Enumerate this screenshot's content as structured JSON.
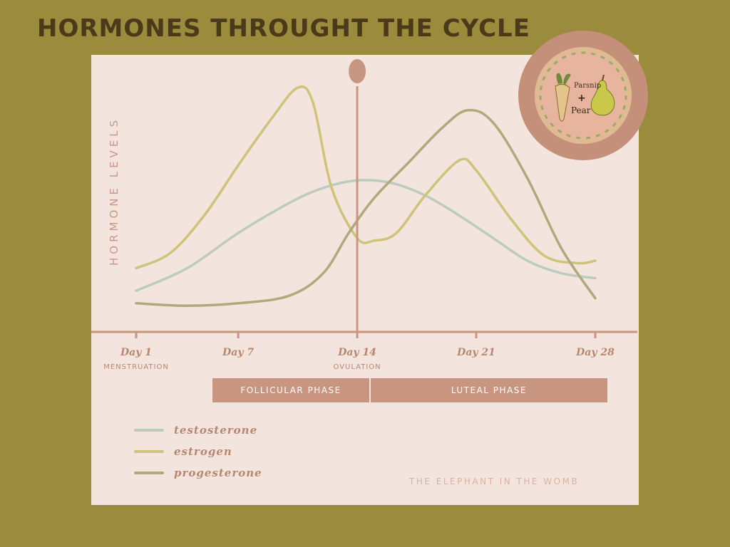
{
  "title": "HORMONES THROUGHT THE CYCLE",
  "chart_data": {
    "type": "line",
    "ylabel": "HORMONE LEVELS",
    "x_ticks": [
      {
        "day": 1,
        "label": "Day 1",
        "sub": "MENSTRUATION"
      },
      {
        "day": 7,
        "label": "Day 7",
        "sub": ""
      },
      {
        "day": 14,
        "label": "Day 14",
        "sub": "OVULATION"
      },
      {
        "day": 21,
        "label": "Day 21",
        "sub": ""
      },
      {
        "day": 28,
        "label": "Day 28",
        "sub": ""
      }
    ],
    "xlim": [
      1,
      28
    ],
    "ylim": [
      0,
      10
    ],
    "ovulation_day": 14,
    "phases": [
      {
        "label": "FOLLICULAR PHASE",
        "start_day": 5.5,
        "end_day": 14.7
      },
      {
        "label": "LUTEAL PHASE",
        "start_day": 14.8,
        "end_day": 28.7
      }
    ],
    "series": [
      {
        "name": "testosterone",
        "color": "#bccbc0",
        "points": [
          [
            1,
            1.5
          ],
          [
            4,
            2.4
          ],
          [
            7,
            3.8
          ],
          [
            10,
            5.0
          ],
          [
            12,
            5.6
          ],
          [
            14,
            5.9
          ],
          [
            16,
            5.8
          ],
          [
            18,
            5.3
          ],
          [
            20,
            4.5
          ],
          [
            22,
            3.6
          ],
          [
            24,
            2.7
          ],
          [
            26,
            2.2
          ],
          [
            28,
            2.0
          ]
        ]
      },
      {
        "name": "estrogen",
        "color": "#cfc27a",
        "points": [
          [
            1,
            2.4
          ],
          [
            3,
            3.0
          ],
          [
            5,
            4.5
          ],
          [
            7,
            6.5
          ],
          [
            9,
            8.4
          ],
          [
            10.5,
            9.6
          ],
          [
            11.4,
            9.0
          ],
          [
            12.5,
            5.6
          ],
          [
            14,
            3.6
          ],
          [
            15,
            3.5
          ],
          [
            16.3,
            3.8
          ],
          [
            18,
            5.3
          ],
          [
            20,
            6.7
          ],
          [
            21,
            6.3
          ],
          [
            23,
            4.4
          ],
          [
            25,
            2.9
          ],
          [
            27,
            2.6
          ],
          [
            28,
            2.7
          ]
        ]
      },
      {
        "name": "progesterone",
        "color": "#b0a97c",
        "points": [
          [
            1,
            1.0
          ],
          [
            4,
            0.9
          ],
          [
            7,
            1.0
          ],
          [
            10,
            1.3
          ],
          [
            12,
            2.2
          ],
          [
            13.5,
            3.8
          ],
          [
            15,
            5.2
          ],
          [
            17,
            6.6
          ],
          [
            19,
            8.0
          ],
          [
            20.5,
            8.7
          ],
          [
            22,
            8.2
          ],
          [
            24,
            6.0
          ],
          [
            26,
            3.2
          ],
          [
            28,
            1.2
          ]
        ]
      }
    ]
  },
  "legend": [
    {
      "label": "testosterone",
      "color": "#bccbc0"
    },
    {
      "label": "estrogen",
      "color": "#cfc27a"
    },
    {
      "label": "progesterone",
      "color": "#b0a97c"
    }
  ],
  "credit": "THE ELEPHANT IN THE WOMB",
  "logo": {
    "line1": "Parsnip",
    "plus": "+",
    "line2": "Pear"
  },
  "colors": {
    "axis": "#c89580",
    "panel": "#f3e5de",
    "background": "#9a8b3d",
    "title": "#4a3a1a"
  }
}
